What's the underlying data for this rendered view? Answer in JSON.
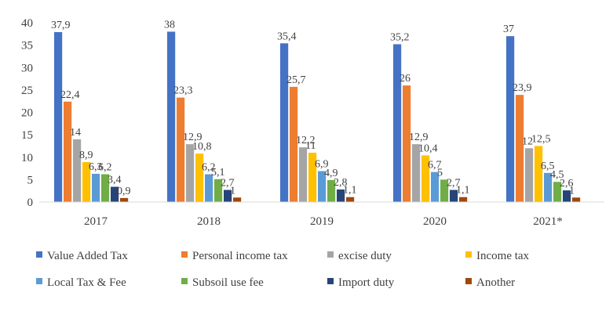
{
  "chart_data": {
    "type": "bar",
    "title": "",
    "xlabel": "",
    "ylabel": "",
    "ylim": [
      0,
      40
    ],
    "yticks": [
      "0",
      "5",
      "10",
      "15",
      "20",
      "25",
      "30",
      "35",
      "40"
    ],
    "grid": false,
    "legend_position": "bottom",
    "categories": [
      "2017",
      "2018",
      "2019",
      "2020",
      "2021*"
    ],
    "series": [
      {
        "name": "Value Added Tax",
        "color": "#4472c4",
        "values": [
          37.9,
          38,
          35.4,
          35.2,
          37
        ],
        "labels": [
          "37,9",
          "38",
          "35,4",
          "35,2",
          "37"
        ]
      },
      {
        "name": "Personal income tax",
        "color": "#ed7d31",
        "values": [
          22.4,
          23.3,
          25.7,
          26,
          23.9
        ],
        "labels": [
          "22,4",
          "23,3",
          "25,7",
          "26",
          "23,9"
        ]
      },
      {
        "name": "excise duty",
        "color": "#a5a5a5",
        "values": [
          14,
          12.9,
          12.2,
          12.9,
          12
        ],
        "labels": [
          "14",
          "12,9",
          "12,2",
          "12,9",
          "12"
        ]
      },
      {
        "name": "Income tax",
        "color": "#ffc000",
        "values": [
          8.9,
          10.8,
          11,
          10.4,
          12.5
        ],
        "labels": [
          "8,9",
          "10,8",
          "11",
          "10,4",
          "12,5"
        ]
      },
      {
        "name": "Local Tax & Fee",
        "color": "#5b9bd5",
        "values": [
          6.3,
          6.2,
          6.9,
          6.7,
          6.5
        ],
        "labels": [
          "6,3",
          "6,2",
          "6,9",
          "6,7",
          "6,5"
        ]
      },
      {
        "name": "Subsoil use fee",
        "color": "#70ad47",
        "values": [
          6.2,
          5.1,
          4.9,
          5,
          4.5
        ],
        "labels": [
          "6,2",
          "5,1",
          "4,9",
          "5",
          "4,5"
        ]
      },
      {
        "name": "Import duty",
        "color": "#264478",
        "values": [
          3.4,
          2.7,
          2.8,
          2.7,
          2.6
        ],
        "labels": [
          "3,4",
          "2,7",
          "2,8",
          "2,7",
          "2,6"
        ]
      },
      {
        "name": "Another",
        "color": "#9e480e",
        "values": [
          0.9,
          1,
          1.1,
          1.1,
          1
        ],
        "labels": [
          "0,9",
          "1",
          "1,1",
          "1,1",
          "1"
        ]
      }
    ]
  }
}
